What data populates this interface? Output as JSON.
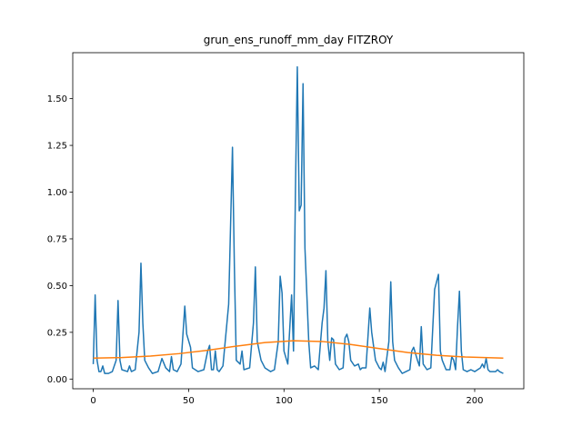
{
  "chart_data": {
    "type": "line",
    "title": "grun_ens_runoff_mm_day FITZROY",
    "xlim": [
      -10.75,
      225.75
    ],
    "xticks": [
      0,
      50,
      100,
      150,
      200
    ],
    "ylim": [
      -0.052,
      1.746
    ],
    "yticks": [
      {
        "value": 0,
        "label": "0.00"
      },
      {
        "value": 0.25,
        "label": "0.25"
      },
      {
        "value": 0.5,
        "label": "0.50"
      },
      {
        "value": 0.75,
        "label": "0.75"
      },
      {
        "value": 1,
        "label": "1.00"
      },
      {
        "value": 1.25,
        "label": "1.25"
      },
      {
        "value": 1.5,
        "label": "1.50"
      }
    ],
    "series": [
      {
        "color": "#1f77b4",
        "x": [
          0,
          1,
          2,
          3,
          4,
          5,
          6,
          8,
          10,
          12,
          13,
          14,
          15,
          18,
          19,
          20,
          22,
          24,
          25,
          26,
          27,
          29,
          31,
          34,
          36,
          38,
          40,
          41,
          42,
          44,
          46,
          48,
          49,
          51,
          52,
          55,
          58,
          60,
          61,
          62,
          63,
          64,
          65,
          66,
          68,
          71,
          73,
          74,
          75,
          77,
          78,
          79,
          82,
          84,
          85,
          86,
          88,
          90,
          93,
          95,
          97,
          98,
          99,
          100,
          102,
          104,
          105,
          106,
          107,
          108,
          109,
          110,
          111,
          113,
          114,
          116,
          118,
          120,
          121,
          122,
          123,
          124,
          125,
          126,
          127,
          129,
          131,
          132,
          133,
          134,
          135,
          137,
          139,
          140,
          141,
          143,
          145,
          146,
          148,
          150,
          151,
          152,
          153,
          155,
          156,
          157,
          158,
          160,
          162,
          164,
          166,
          167,
          168,
          170,
          171,
          172,
          173,
          175,
          177,
          179,
          181,
          182,
          183,
          185,
          187,
          188,
          189,
          190,
          191,
          192,
          193,
          194,
          196,
          198,
          200,
          203,
          204,
          205,
          206,
          207,
          208,
          210,
          211,
          212,
          213,
          215
        ],
        "values": [
          0.08,
          0.45,
          0.1,
          0.04,
          0.04,
          0.07,
          0.03,
          0.03,
          0.04,
          0.1,
          0.42,
          0.1,
          0.05,
          0.04,
          0.07,
          0.04,
          0.05,
          0.25,
          0.62,
          0.3,
          0.1,
          0.06,
          0.03,
          0.04,
          0.11,
          0.06,
          0.04,
          0.12,
          0.05,
          0.04,
          0.08,
          0.39,
          0.24,
          0.17,
          0.06,
          0.04,
          0.05,
          0.15,
          0.18,
          0.05,
          0.05,
          0.15,
          0.05,
          0.04,
          0.07,
          0.4,
          1.24,
          0.6,
          0.1,
          0.08,
          0.15,
          0.05,
          0.06,
          0.3,
          0.6,
          0.2,
          0.1,
          0.06,
          0.04,
          0.05,
          0.2,
          0.55,
          0.46,
          0.15,
          0.08,
          0.45,
          0.15,
          1.0,
          1.67,
          0.9,
          0.93,
          1.58,
          0.7,
          0.2,
          0.06,
          0.07,
          0.05,
          0.3,
          0.38,
          0.58,
          0.2,
          0.1,
          0.22,
          0.21,
          0.08,
          0.05,
          0.06,
          0.22,
          0.24,
          0.2,
          0.1,
          0.07,
          0.08,
          0.05,
          0.06,
          0.06,
          0.38,
          0.25,
          0.1,
          0.06,
          0.05,
          0.09,
          0.04,
          0.2,
          0.52,
          0.2,
          0.1,
          0.06,
          0.03,
          0.04,
          0.05,
          0.15,
          0.17,
          0.1,
          0.07,
          0.28,
          0.08,
          0.05,
          0.06,
          0.48,
          0.56,
          0.15,
          0.1,
          0.05,
          0.05,
          0.12,
          0.1,
          0.05,
          0.28,
          0.47,
          0.15,
          0.05,
          0.04,
          0.05,
          0.04,
          0.06,
          0.08,
          0.06,
          0.11,
          0.05,
          0.04,
          0.04,
          0.04,
          0.05,
          0.04,
          0.03
        ]
      },
      {
        "color": "#ff7f0e",
        "x": [
          0,
          15,
          30,
          45,
          60,
          75,
          90,
          105,
          120,
          135,
          150,
          165,
          180,
          195,
          215
        ],
        "values": [
          0.112,
          0.115,
          0.123,
          0.136,
          0.154,
          0.176,
          0.195,
          0.205,
          0.201,
          0.185,
          0.163,
          0.142,
          0.127,
          0.118,
          0.112
        ]
      }
    ]
  }
}
